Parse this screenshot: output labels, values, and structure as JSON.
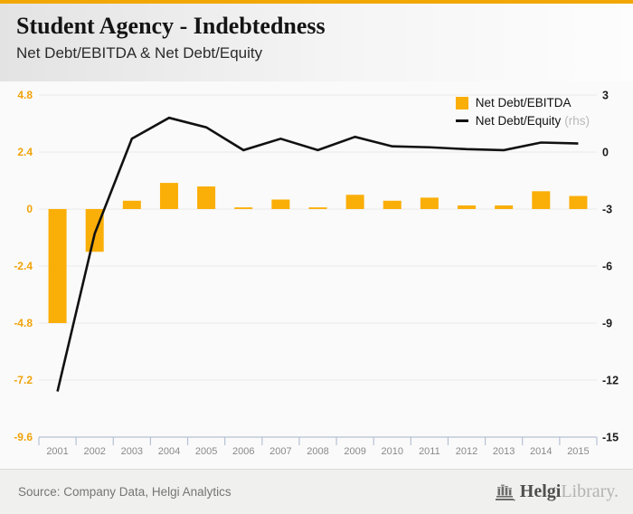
{
  "header": {
    "title": "Student Agency - Indebtedness",
    "subtitle": "Net Debt/EBITDA & Net Debt/Equity"
  },
  "legend": {
    "bar_label": "Net Debt/EBITDA",
    "line_label": "Net Debt/Equity",
    "line_suffix": "(rhs)"
  },
  "footer": {
    "source": "Source: Company Data, Helgi Analytics",
    "brand_bold": "Helgi",
    "brand_light": "Library."
  },
  "colors": {
    "accent_orange": "#F2A705",
    "bar_fill": "#FAAE08",
    "left_tick_label": "#F0A30A",
    "right_tick_label": "#1b1b1b",
    "line_stroke": "#111111",
    "grid": "#e9e9e9",
    "axis": "#b6c1d4",
    "year_label": "#8a8a8a"
  },
  "chart_data": {
    "type": "bar+line",
    "title": "Student Agency - Indebtedness",
    "subtitle": "Net Debt/EBITDA & Net Debt/Equity",
    "categories": [
      "2001",
      "2002",
      "2003",
      "2004",
      "2005",
      "2006",
      "2007",
      "2008",
      "2009",
      "2010",
      "2011",
      "2012",
      "2013",
      "2014",
      "2015"
    ],
    "series": [
      {
        "name": "Net Debt/EBITDA",
        "type": "bar",
        "axis": "left",
        "color": "#FAAE08",
        "values": [
          -4.8,
          -1.8,
          0.35,
          1.1,
          0.95,
          0.07,
          0.4,
          0.07,
          0.6,
          0.35,
          0.48,
          0.15,
          0.15,
          0.75,
          0.55
        ]
      },
      {
        "name": "Net Debt/Equity",
        "type": "line",
        "axis": "right",
        "color": "#111111",
        "legend_suffix": "(rhs)",
        "values": [
          -12.6,
          -4.3,
          0.7,
          1.8,
          1.3,
          0.1,
          0.7,
          0.1,
          0.8,
          0.3,
          0.25,
          0.15,
          0.1,
          0.5,
          0.45
        ]
      }
    ],
    "left_axis": {
      "ticks": [
        4.8,
        2.4,
        0,
        -2.4,
        -4.8,
        -7.2,
        -9.6
      ],
      "min": -9.6,
      "max": 4.8
    },
    "right_axis": {
      "ticks": [
        3,
        0,
        -3,
        -6,
        -9,
        -12,
        -15
      ],
      "min": -15,
      "max": 3
    },
    "legend_position": "top-right",
    "grid": true
  }
}
